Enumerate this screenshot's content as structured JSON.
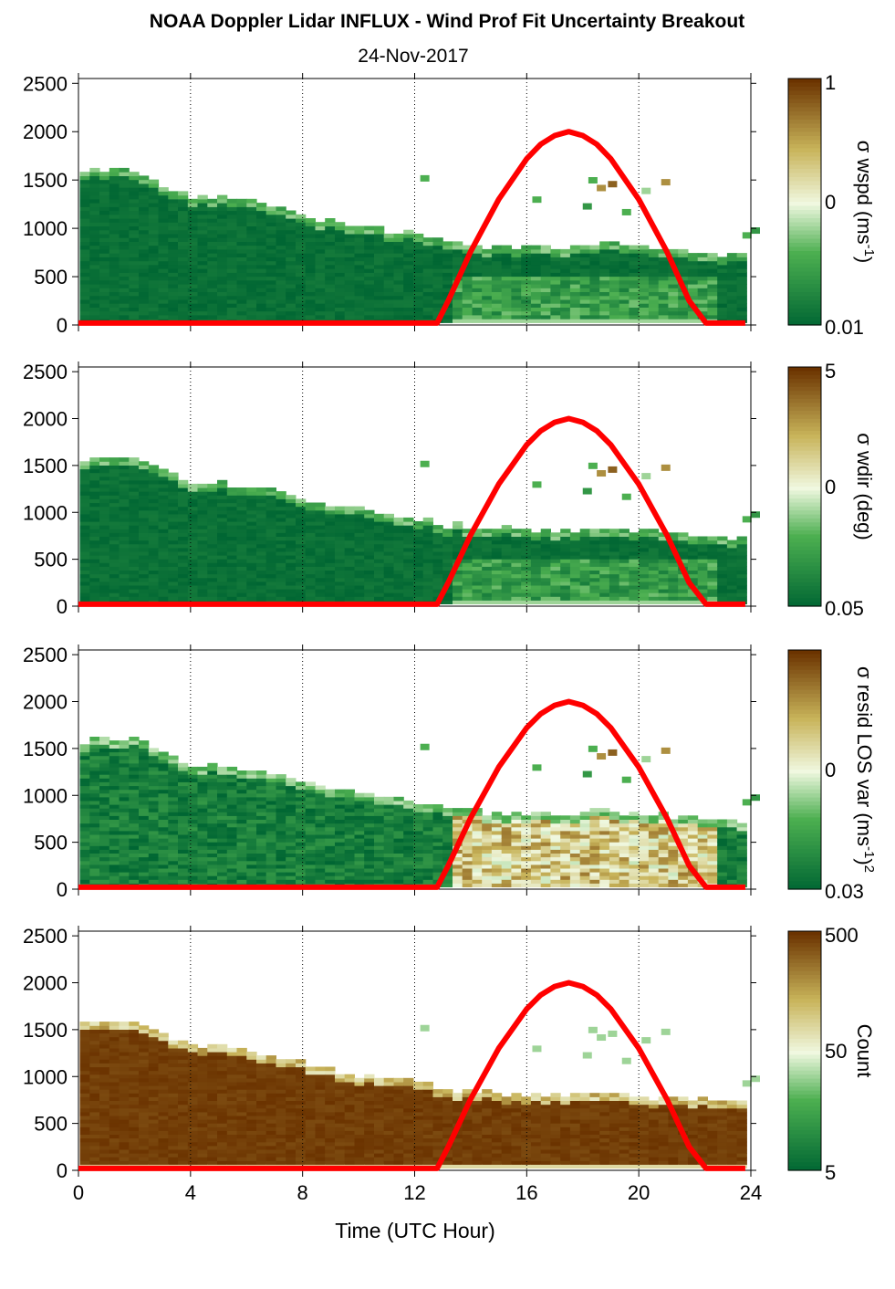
{
  "title": "NOAA Doppler Lidar INFLUX - Wind Prof Fit Uncertainty Breakout",
  "subtitle": "24-Nov-2017",
  "xlabel": "Time (UTC Hour)",
  "colors": {
    "dark_green": "#006633",
    "light": "#f0f8e0",
    "dark_brown": "#6b3300",
    "curve": "#ff0000"
  },
  "chart_data": [
    {
      "type": "heatmap",
      "name": "wspd",
      "colorbar_label_html": "σ wspd (ms<sup>-1</sup>)",
      "colorbar_label_parts": [
        "σ wspd (ms",
        "-1",
        ")"
      ],
      "colorbar_ticks": [
        "1",
        "0",
        "0.01"
      ],
      "x_ticks": [
        "0",
        "4",
        "8",
        "12",
        "16",
        "20",
        "24"
      ],
      "y_ticks": [
        "0",
        "500",
        "1000",
        "1500",
        "2000",
        "2500"
      ],
      "xlim": [
        0,
        24
      ],
      "ylim": [
        0,
        2550
      ]
    },
    {
      "type": "heatmap",
      "name": "wdir",
      "colorbar_label_parts": [
        "σ wdir (deg)"
      ],
      "colorbar_ticks": [
        "5",
        "0",
        "0.05"
      ],
      "x_ticks": [
        "0",
        "4",
        "8",
        "12",
        "16",
        "20",
        "24"
      ],
      "y_ticks": [
        "0",
        "500",
        "1000",
        "1500",
        "2000",
        "2500"
      ],
      "xlim": [
        0,
        24
      ],
      "ylim": [
        0,
        2550
      ]
    },
    {
      "type": "heatmap",
      "name": "resid",
      "colorbar_label_parts": [
        "σ resid LOS var (ms",
        "-1",
        ")",
        "2"
      ],
      "colorbar_ticks": [
        "0",
        "0.03"
      ],
      "x_ticks": [
        "0",
        "4",
        "8",
        "12",
        "16",
        "20",
        "24"
      ],
      "y_ticks": [
        "0",
        "500",
        "1000",
        "1500",
        "2000",
        "2500"
      ],
      "xlim": [
        0,
        24
      ],
      "ylim": [
        0,
        2550
      ]
    },
    {
      "type": "heatmap",
      "name": "count",
      "colorbar_label_parts": [
        "Count"
      ],
      "colorbar_ticks": [
        "500",
        "50",
        "5"
      ],
      "x_ticks": [
        "0",
        "4",
        "8",
        "12",
        "16",
        "20",
        "24"
      ],
      "y_ticks": [
        "0",
        "500",
        "1000",
        "1500",
        "2000",
        "2500"
      ],
      "xlim": [
        0,
        24
      ],
      "ylim": [
        0,
        2550
      ]
    }
  ],
  "data_top_profile": {
    "time": [
      0,
      1,
      2,
      3,
      4,
      5,
      6,
      7,
      8,
      9,
      10,
      11,
      12,
      13,
      14,
      15,
      16,
      17,
      18,
      19,
      20,
      21,
      22,
      23,
      23.8
    ],
    "height": [
      1560,
      1580,
      1550,
      1400,
      1300,
      1300,
      1250,
      1200,
      1100,
      1050,
      1000,
      960,
      920,
      850,
      820,
      800,
      800,
      780,
      810,
      820,
      780,
      760,
      740,
      720,
      700
    ]
  },
  "curve": {
    "type": "line",
    "series_x": [
      0,
      12.8,
      13.2,
      14,
      15,
      16,
      16.5,
      17,
      17.5,
      18,
      18.5,
      19,
      20,
      21,
      21.8,
      22.4,
      23.8
    ],
    "series_y": [
      20,
      20,
      250,
      760,
      1300,
      1720,
      1870,
      1960,
      2000,
      1960,
      1870,
      1720,
      1300,
      760,
      250,
      20,
      20
    ]
  }
}
